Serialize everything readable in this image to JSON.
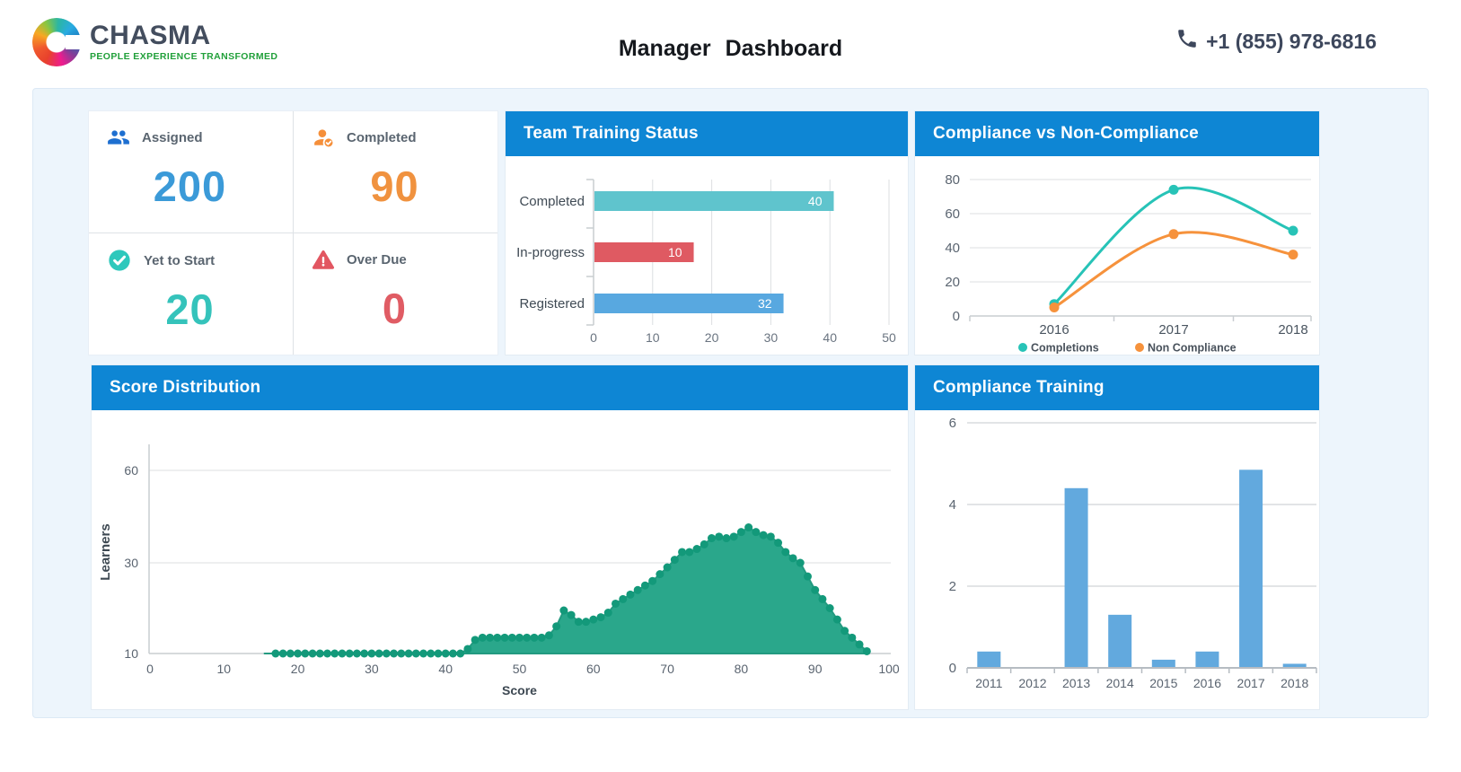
{
  "header": {
    "logo_name": "CHASMA",
    "logo_tagline": "PEOPLE EXPERIENCE TRANSFORMED",
    "title": "Manager Dashboard",
    "phone": "+1 (855) 978-6816"
  },
  "kpis": [
    {
      "label": "Assigned",
      "value": "200",
      "value_color": "#3b9ad8",
      "icon": "users-icon",
      "icon_color": "#1e6fd0"
    },
    {
      "label": "Completed",
      "value": "90",
      "value_color": "#f0923f",
      "icon": "person-check-icon",
      "icon_color": "#f58f3a"
    },
    {
      "label": "Yet to Start",
      "value": "20",
      "value_color": "#35c3bb",
      "icon": "check-circle-icon",
      "icon_color": "#2ec8bc"
    },
    {
      "label": "Over Due",
      "value": "0",
      "value_color": "#e05c64",
      "icon": "warning-icon",
      "icon_color": "#e25661"
    }
  ],
  "chart_data": [
    {
      "id": "team_training_status",
      "type": "bar",
      "orientation": "horizontal",
      "title": "Team Training Status",
      "categories": [
        "Completed",
        "In-progress",
        "Registered"
      ],
      "values": [
        40,
        10,
        32
      ],
      "bar_axis_lengths": [
        40.5,
        16.8,
        32
      ],
      "bar_colors": [
        "#5fc4cd",
        "#df5a62",
        "#58a8e0"
      ],
      "xlim": [
        0,
        50
      ],
      "xticks": [
        0,
        10,
        20,
        30,
        40,
        50
      ],
      "value_label_color": "#ffffff",
      "grid": true
    },
    {
      "id": "compliance_vs_non_compliance",
      "type": "line",
      "title": "Compliance vs Non-Compliance",
      "x": [
        "2016",
        "2017",
        "2018"
      ],
      "series": [
        {
          "name": "Completions",
          "color": "#27c3b7",
          "values": [
            7,
            74,
            50
          ]
        },
        {
          "name": "Non Compliance",
          "color": "#f6923c",
          "values": [
            5,
            48,
            36
          ]
        }
      ],
      "ylim": [
        0,
        80
      ],
      "yticks": [
        0,
        20,
        40,
        60,
        80
      ],
      "smooth": true,
      "grid": true,
      "legend_position": "bottom"
    },
    {
      "id": "score_distribution",
      "type": "area",
      "title": "Score Distribution",
      "xlabel": "Score",
      "ylabel": "Learners",
      "xlim": [
        0,
        100
      ],
      "xticks": [
        0,
        10,
        20,
        30,
        40,
        50,
        60,
        70,
        80,
        90,
        100
      ],
      "yticks": [
        10,
        30,
        60
      ],
      "x_start": 17,
      "x_step": 1,
      "line_start_x": 15.5,
      "values": [
        10,
        10,
        10,
        10,
        10,
        10,
        10,
        10,
        10,
        10,
        10,
        10,
        10,
        10,
        10,
        10,
        10,
        10,
        10,
        10,
        10,
        10,
        10,
        10,
        10,
        10,
        11,
        13,
        13.5,
        13.5,
        13.5,
        13.5,
        13.5,
        13.5,
        13.5,
        13.5,
        13.5,
        14,
        16,
        19.5,
        18.5,
        17,
        17,
        17.5,
        18,
        19,
        21,
        22,
        23,
        24,
        25,
        26,
        27.5,
        29,
        31,
        33.5,
        33.5,
        34.5,
        36,
        38,
        38.5,
        38,
        38.5,
        40,
        41.5,
        40,
        39,
        38.5,
        36.5,
        33.5,
        31.5,
        30,
        27,
        24,
        22,
        20,
        17.5,
        15,
        13.5,
        12,
        10.5
      ],
      "fill_color": "#2aa78b",
      "dot_color": "#13997a",
      "grid": true
    },
    {
      "id": "compliance_training",
      "type": "bar",
      "orientation": "vertical",
      "title": "Compliance Training",
      "categories": [
        "2011",
        "2012",
        "2013",
        "2014",
        "2015",
        "2016",
        "2017",
        "2018"
      ],
      "values": [
        0.4,
        0,
        4.4,
        1.3,
        0.2,
        0.4,
        4.85,
        0.1
      ],
      "ylim": [
        0,
        6
      ],
      "yticks": [
        0,
        2,
        4,
        6
      ],
      "bar_color": "#62a9de",
      "grid": true
    }
  ],
  "colors": {
    "header_blue": "#0e86d4",
    "container_bg": "#edf5fc",
    "axis_text": "#5a6470",
    "gridline": "#dcdfe2",
    "axis_line": "#c9cdd1",
    "legend_text": "#49525c"
  }
}
